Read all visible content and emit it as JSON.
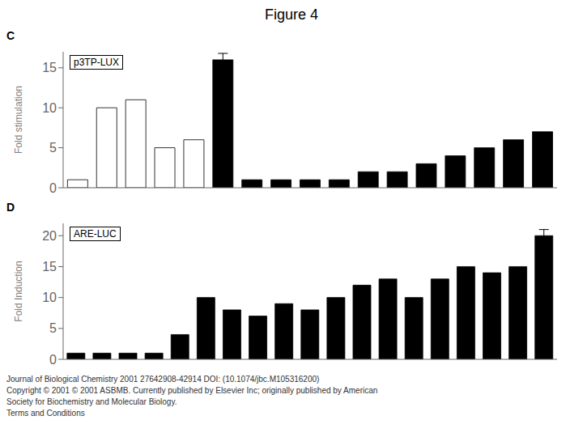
{
  "title": "Figure 4",
  "annotations": [
    "Journal of Biological Chemistry 2001 27642908-42914 DOI: (10.1074/jbc.M105316200)",
    "Copyright © 2001 © 2001 ASBMB. Currently published by Elsevier Inc; originally published by American",
    "Society for Biochemistry and Molecular Biology.",
    "Terms and Conditions"
  ],
  "chart_data": [
    {
      "type": "bar",
      "title": "C",
      "annotations": [
        "p3TP-LUX"
      ],
      "ylabel": "Fold stimulation",
      "categories": [
        null,
        null,
        null,
        null,
        null,
        null,
        null,
        null,
        null,
        null,
        null,
        null,
        null,
        null,
        null,
        null,
        null
      ],
      "series": [
        {
          "color": "#ffffff",
          "values": [
            1,
            10,
            11,
            5,
            6,
            0,
            0,
            0,
            0,
            0,
            0,
            0,
            0,
            0,
            0,
            0,
            0
          ]
        },
        {
          "color": "#000000",
          "values": [
            0,
            0,
            0,
            0,
            0,
            16,
            1,
            1,
            1,
            1,
            2,
            2,
            3,
            4,
            5,
            6,
            7
          ],
          "errors": [
            null,
            null,
            null,
            null,
            null,
            0.8,
            null,
            null,
            null,
            null,
            null,
            null,
            null,
            null,
            null,
            null,
            null
          ]
        }
      ],
      "stacked": true,
      "ylim": [
        0,
        17
      ],
      "yticks": [
        0,
        5,
        10,
        15
      ],
      "grid": false,
      "tick_labels": "y"
    },
    {
      "type": "bar",
      "title": "D",
      "annotations": [
        "ARE-LUC"
      ],
      "ylabel": "Fold Induction",
      "categories": [
        null,
        null,
        null,
        null,
        null,
        null,
        null,
        null,
        null,
        null,
        null,
        null,
        null,
        null,
        null,
        null,
        null,
        null,
        null
      ],
      "series": [
        {
          "color": "#000000",
          "values": [
            1,
            1,
            1,
            1,
            4,
            10,
            8,
            7,
            9,
            8,
            10,
            12,
            13,
            10,
            13,
            15,
            14,
            15,
            20
          ],
          "errors": [
            null,
            null,
            null,
            null,
            null,
            null,
            null,
            null,
            null,
            null,
            null,
            null,
            null,
            null,
            null,
            null,
            null,
            null,
            1.0
          ]
        }
      ],
      "ylim": [
        0,
        22
      ],
      "yticks": [
        0,
        5,
        10,
        15,
        20
      ],
      "grid": false,
      "tick_labels": "y"
    }
  ]
}
